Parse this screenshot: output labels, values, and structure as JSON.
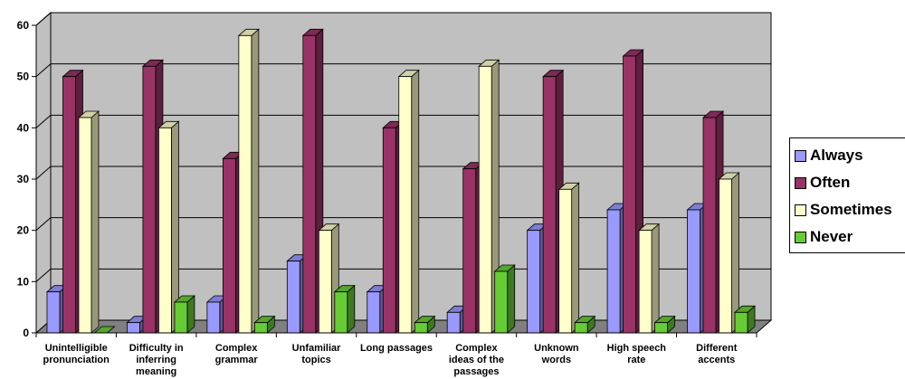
{
  "chart_data": {
    "type": "bar",
    "title": "",
    "xlabel": "",
    "ylabel": "",
    "ylim": [
      0,
      60
    ],
    "yticks": [
      0,
      10,
      20,
      30,
      40,
      50,
      60
    ],
    "grid": true,
    "legend_position": "right",
    "style": "3d-clustered-column",
    "categories": [
      [
        "Unintelligible",
        "pronunciation"
      ],
      [
        "Difficulty in",
        "inferring",
        "meaning"
      ],
      [
        "Complex",
        "grammar"
      ],
      [
        "Unfamiliar",
        "topics"
      ],
      [
        "Long passages"
      ],
      [
        "Complex",
        "ideas of the",
        "passages"
      ],
      [
        "Unknown",
        "words"
      ],
      [
        "High speech",
        "rate"
      ],
      [
        "Different",
        "accents"
      ]
    ],
    "series": [
      {
        "name": "Always",
        "color": "#9999ff",
        "values": [
          8,
          2,
          6,
          14,
          8,
          4,
          20,
          24,
          24
        ]
      },
      {
        "name": "Often",
        "color": "#993366",
        "values": [
          50,
          52,
          34,
          58,
          40,
          32,
          50,
          54,
          42
        ]
      },
      {
        "name": "Sometimes",
        "color": "#ffffcc",
        "values": [
          42,
          40,
          58,
          20,
          50,
          52,
          28,
          20,
          30
        ]
      },
      {
        "name": "Never",
        "color": "#66cc33",
        "values": [
          0,
          6,
          2,
          8,
          2,
          12,
          2,
          2,
          4
        ]
      }
    ],
    "wall_color": "#c0c0c0",
    "floor_color": "#808080"
  }
}
